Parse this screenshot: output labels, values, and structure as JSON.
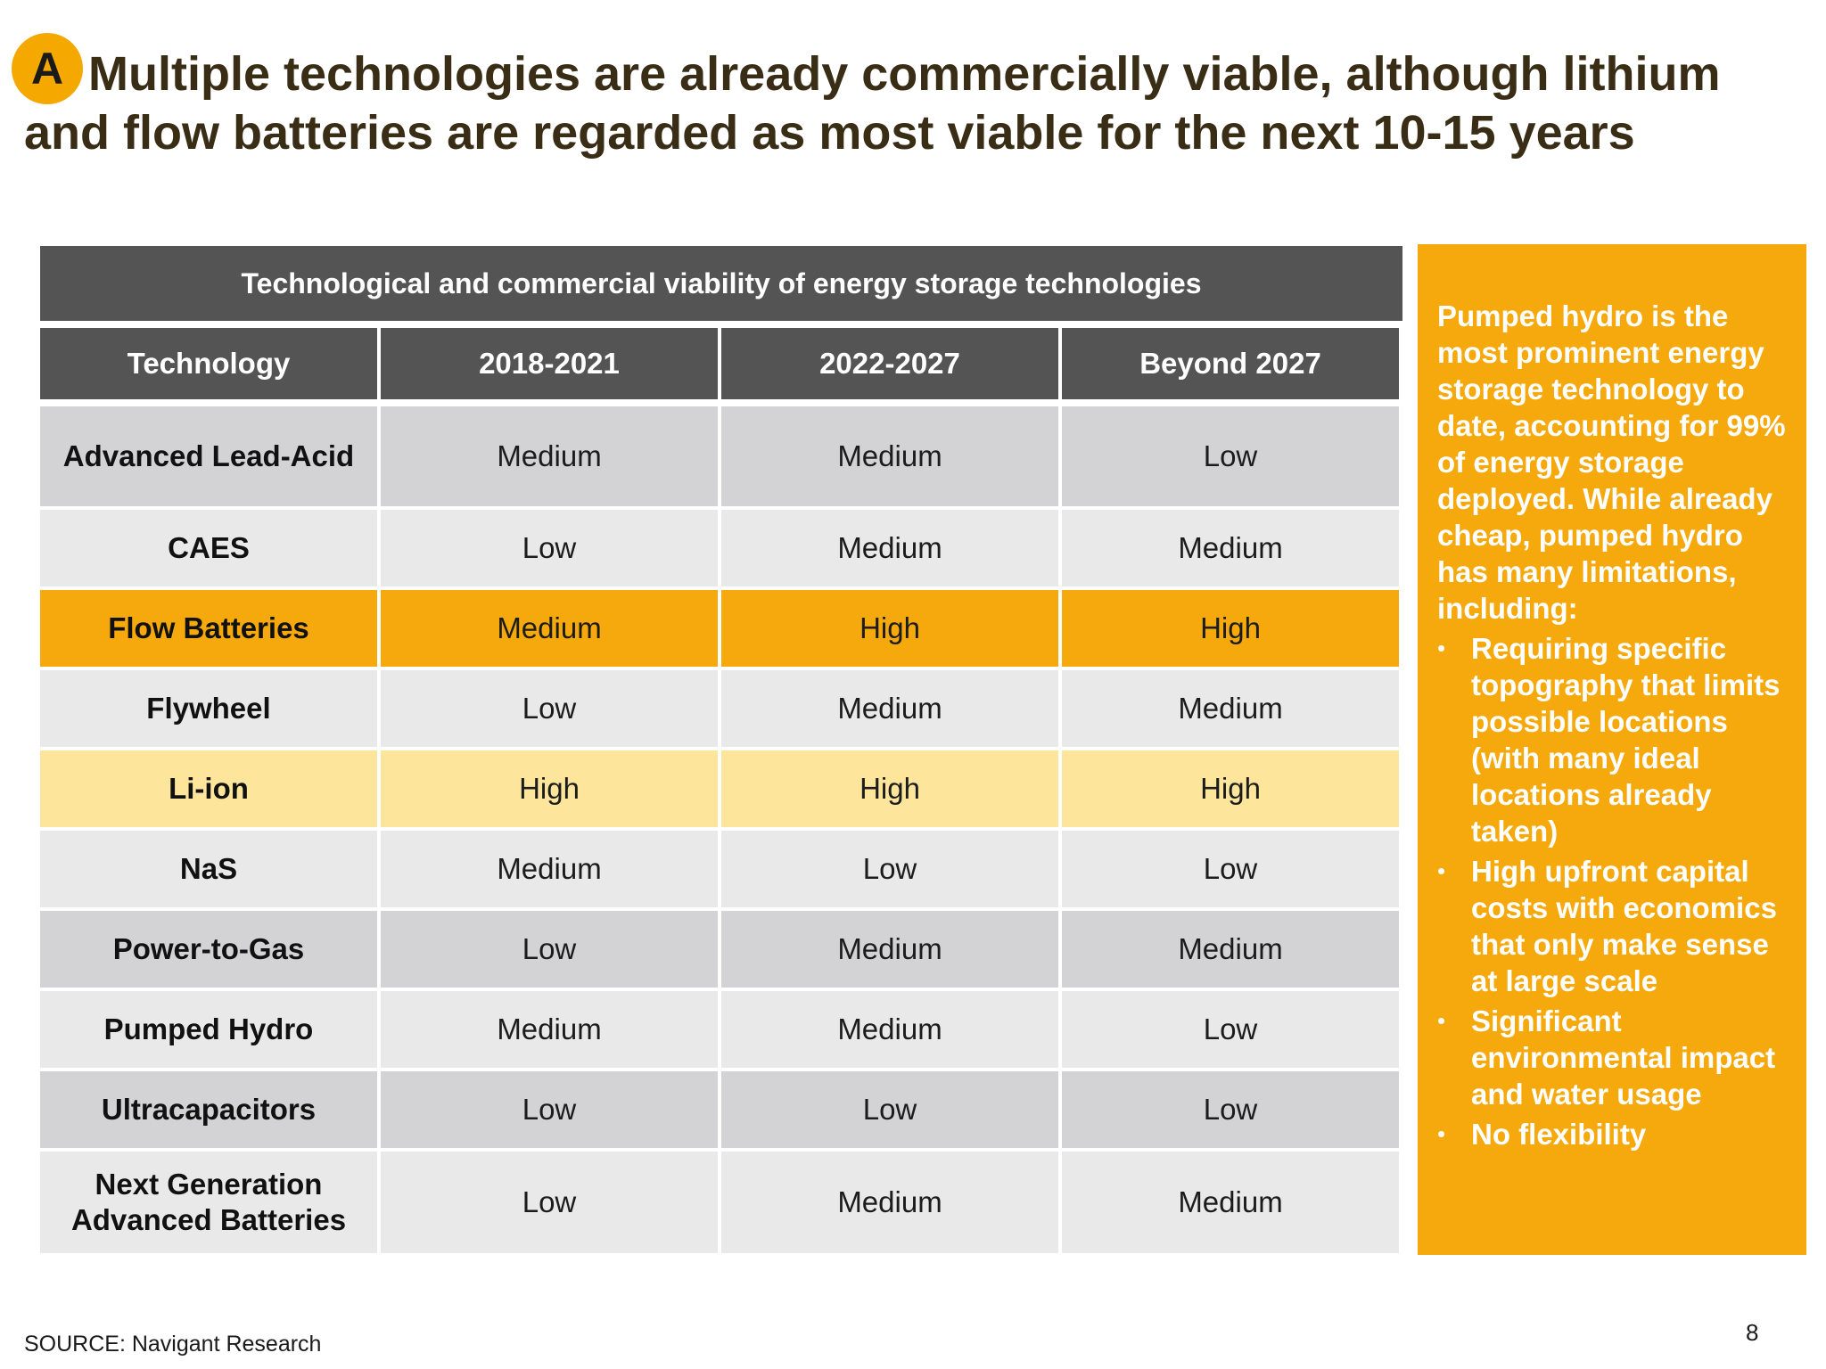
{
  "badge": "A",
  "title": "Multiple technologies are already commercially viable, although lithium and flow batteries are regarded as most viable for the next 10-15 years",
  "table": {
    "caption": "Technological and commercial viability of energy storage technologies",
    "headers": [
      "Technology",
      "2018-2021",
      "2022-2027",
      "Beyond 2027"
    ],
    "rows": [
      {
        "technology": "Advanced Lead-Acid",
        "cells": [
          "Medium",
          "Medium",
          "Low"
        ]
      },
      {
        "technology": "CAES",
        "cells": [
          "Low",
          "Medium",
          "Medium"
        ]
      },
      {
        "technology": "Flow Batteries",
        "cells": [
          "Medium",
          "High",
          "High"
        ]
      },
      {
        "technology": "Flywheel",
        "cells": [
          "Low",
          "Medium",
          "Medium"
        ]
      },
      {
        "technology": "Li-ion",
        "cells": [
          "High",
          "High",
          "High"
        ]
      },
      {
        "technology": "NaS",
        "cells": [
          "Medium",
          "Low",
          "Low"
        ]
      },
      {
        "technology": "Power-to-Gas",
        "cells": [
          "Low",
          "Medium",
          "Medium"
        ]
      },
      {
        "technology": "Pumped Hydro",
        "cells": [
          "Medium",
          "Medium",
          "Low"
        ]
      },
      {
        "technology": "Ultracapacitors",
        "cells": [
          "Low",
          "Low",
          "Low"
        ]
      },
      {
        "technology": "Next Generation Advanced Batteries",
        "cells": [
          "Low",
          "Medium",
          "Medium"
        ]
      }
    ]
  },
  "callout": {
    "intro": "Pumped hydro is the most prominent energy storage technology to date, accounting for 99% of energy storage deployed. While already cheap, pumped hydro has many limitations, including:",
    "bullet_char": "•",
    "bullets": [
      "Requiring specific topography that limits possible locations (with many ideal locations already taken)",
      "High upfront capital costs with economics that only make sense at large scale",
      "Significant environmental impact and water usage",
      "No flexibility"
    ]
  },
  "source": "SOURCE: Navigant Research",
  "page_number": "8",
  "colors": {
    "accent_orange": "#f6a90d",
    "highlight_yellow": "#fde69b",
    "header_gray": "#545454",
    "row_dark": "#d3d2d4",
    "row_light": "#e9e9ea",
    "title_brown": "#3a2d16"
  }
}
